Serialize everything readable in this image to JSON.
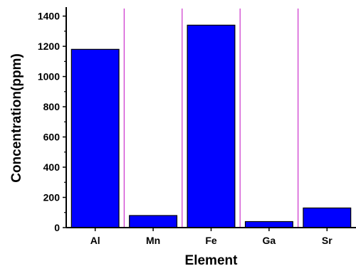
{
  "chart_data": {
    "type": "bar",
    "title": "",
    "xlabel": "Element",
    "ylabel": "Concentration(ppm)",
    "categories": [
      "Al",
      "Mn",
      "Fe",
      "Ga",
      "Sr"
    ],
    "values": [
      1180,
      80,
      1340,
      40,
      130
    ],
    "ylim": [
      0,
      1450
    ],
    "yticks": [
      0,
      200,
      400,
      600,
      800,
      1000,
      1200,
      1400
    ],
    "bar_color": "#0000ff",
    "separator_color": "#cc33cc",
    "grid": false,
    "legend": "none"
  }
}
